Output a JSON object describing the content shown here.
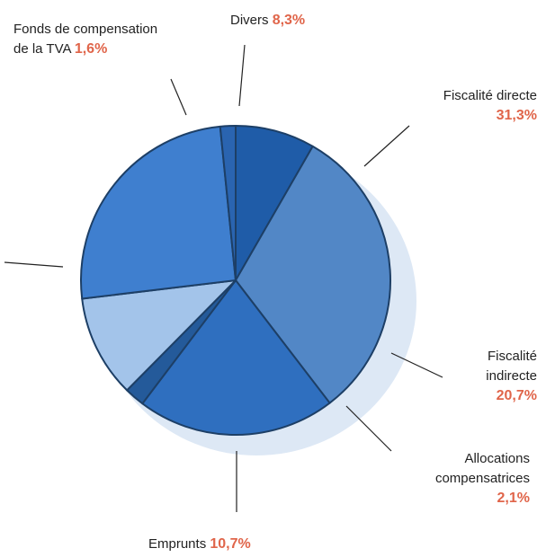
{
  "chart_data": {
    "type": "pie",
    "categories": [
      "Divers",
      "Fiscalité directe",
      "Fiscalité indirecte",
      "Allocations compensatrices",
      "Emprunts",
      null,
      "Fonds de compensation de la TVA"
    ],
    "values": [
      8.3,
      31.3,
      20.7,
      2.1,
      10.7,
      25.3,
      1.6
    ],
    "value_labels": [
      "8,3%",
      "31,3%",
      "20,7%",
      "2,1%",
      "10,7%",
      null,
      "1,6%"
    ],
    "colors": [
      "#1f5ca8",
      "#5287c6",
      "#2f6fbf",
      "#245a9a",
      "#a3c4ea",
      "#3f7fcf",
      "#2a64b0"
    ]
  }
}
